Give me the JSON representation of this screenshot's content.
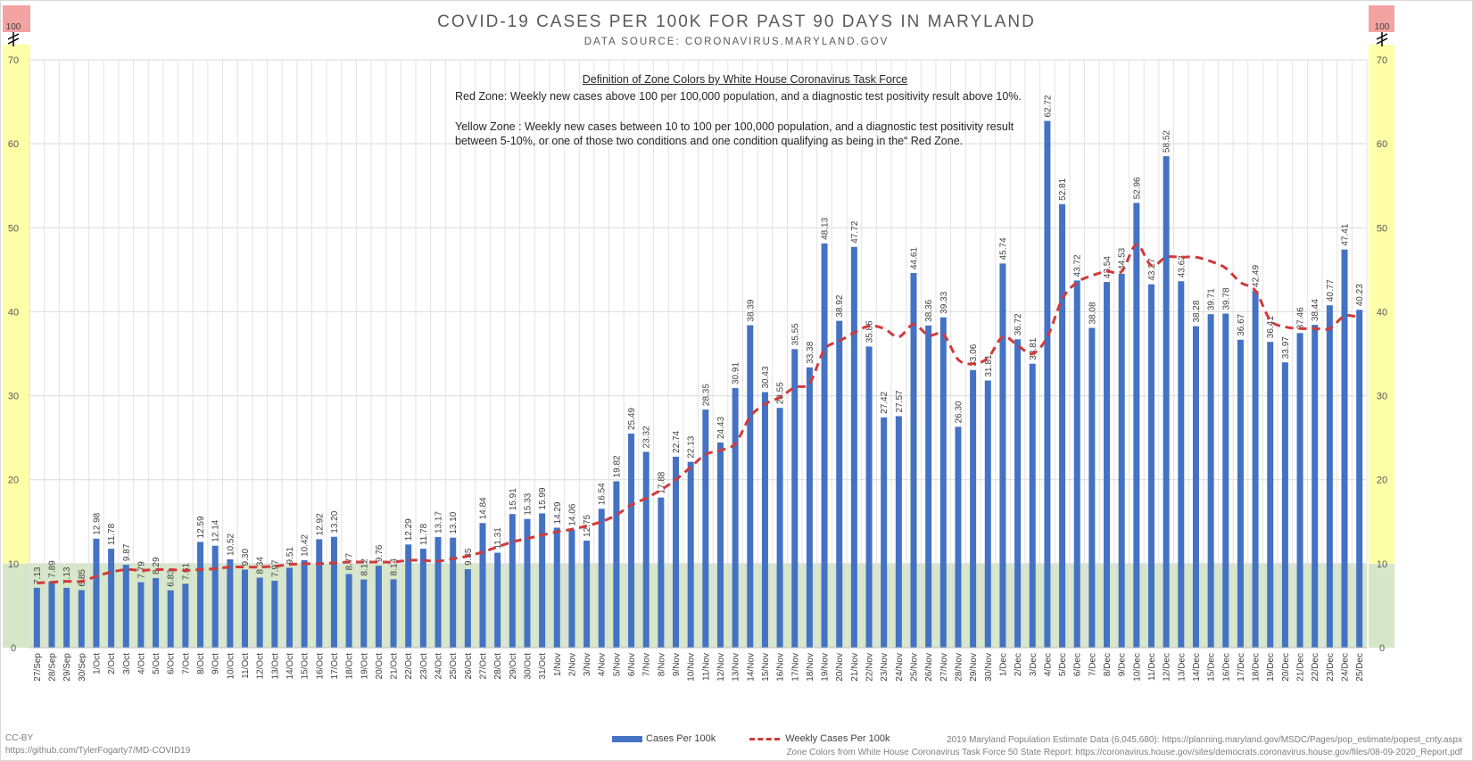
{
  "header": {
    "title": "COVID-19 CASES PER 100K FOR PAST 90 DAYS IN MARYLAND",
    "subtitle": "DATA SOURCE: CORONAVIRUS.MARYLAND.GOV"
  },
  "definitions": {
    "heading": "Definition of Zone Colors by White House Coronavirus Task Force",
    "red": "Red Zone: Weekly new cases above 100 per 100,000 population, and a diagnostic test positivity result above 10%.",
    "yellow_1": "Yellow Zone : Weekly new cases between 10 to 100 per 100,000 population, and a diagnostic test positivity result",
    "yellow_2": "between 5-10%, or one of those two conditions and one condition qualifying as being in the“ Red Zone."
  },
  "legend": {
    "bars": "Cases Per 100k",
    "line": "Weekly Cases Per 100k"
  },
  "footer": {
    "license": "CC-BY",
    "repo": "https://github.com/TylerFogarty7/MD-COVID19",
    "population": "2019 Maryland Population Estimate Data (6,045,680): https://planning.maryland.gov/MSDC/Pages/pop_estimate/popest_cnty.aspx",
    "zones": "Zone Colors from White House Coronavirus Task Force 50 State Report: https://coronavirus.house.gov/sites/democrats.coronavirus.house.gov/files/08-09-2020_Report.pdf"
  },
  "colors": {
    "bar": "#4472c4",
    "line": "#d13a3a",
    "red_zone": "#f4a3a3",
    "yellow_zone": "#ffffa8",
    "green_zone": "#d6e6c9"
  },
  "chart_data": {
    "type": "bar",
    "title": "COVID-19 CASES PER 100K FOR PAST 90 DAYS IN MARYLAND",
    "subtitle": "DATA SOURCE: CORONAVIRUS.MARYLAND.GOV",
    "ylim": [
      0,
      70
    ],
    "yticks": [
      0,
      10,
      20,
      30,
      40,
      50,
      60,
      70
    ],
    "axis_break_label": "100",
    "grid": true,
    "legend_position": "bottom",
    "categories": [
      "27/Sep",
      "28/Sep",
      "29/Sep",
      "30/Sep",
      "1/Oct",
      "2/Oct",
      "3/Oct",
      "4/Oct",
      "5/Oct",
      "6/Oct",
      "7/Oct",
      "8/Oct",
      "9/Oct",
      "10/Oct",
      "11/Oct",
      "12/Oct",
      "13/Oct",
      "14/Oct",
      "15/Oct",
      "16/Oct",
      "17/Oct",
      "18/Oct",
      "19/Oct",
      "20/Oct",
      "21/Oct",
      "22/Oct",
      "23/Oct",
      "24/Oct",
      "25/Oct",
      "26/Oct",
      "27/Oct",
      "28/Oct",
      "29/Oct",
      "30/Oct",
      "31/Oct",
      "1/Nov",
      "2/Nov",
      "3/Nov",
      "4/Nov",
      "5/Nov",
      "6/Nov",
      "7/Nov",
      "8/Nov",
      "9/Nov",
      "10/Nov",
      "11/Nov",
      "12/Nov",
      "13/Nov",
      "14/Nov",
      "15/Nov",
      "16/Nov",
      "17/Nov",
      "18/Nov",
      "19/Nov",
      "20/Nov",
      "21/Nov",
      "22/Nov",
      "23/Nov",
      "24/Nov",
      "25/Nov",
      "26/Nov",
      "27/Nov",
      "28/Nov",
      "29/Nov",
      "30/Nov",
      "1/Dec",
      "2/Dec",
      "3/Dec",
      "4/Dec",
      "5/Dec",
      "6/Dec",
      "7/Dec",
      "8/Dec",
      "9/Dec",
      "10/Dec",
      "11/Dec",
      "12/Dec",
      "13/Dec",
      "14/Dec",
      "15/Dec",
      "16/Dec",
      "17/Dec",
      "18/Dec",
      "19/Dec",
      "20/Dec",
      "21/Dec",
      "22/Dec",
      "23/Dec",
      "24/Dec",
      "25/Dec"
    ],
    "series": [
      {
        "name": "Cases Per 100k",
        "type": "bar",
        "values": [
          7.13,
          7.89,
          7.13,
          6.85,
          12.98,
          11.78,
          9.87,
          7.79,
          8.29,
          6.83,
          7.61,
          12.59,
          12.14,
          10.52,
          9.3,
          8.34,
          7.97,
          9.51,
          10.42,
          12.92,
          13.2,
          8.77,
          8.12,
          9.76,
          8.14,
          12.29,
          11.78,
          13.17,
          13.1,
          9.35,
          14.84,
          11.31,
          15.91,
          15.33,
          15.99,
          14.29,
          14.06,
          12.75,
          16.54,
          19.82,
          25.49,
          23.32,
          17.88,
          22.74,
          22.13,
          28.35,
          24.43,
          30.91,
          38.39,
          30.43,
          28.55,
          35.55,
          33.38,
          48.13,
          38.92,
          47.72,
          35.86,
          27.42,
          27.57,
          44.61,
          38.36,
          39.33,
          26.3,
          33.06,
          31.81,
          45.74,
          36.72,
          33.81,
          62.72,
          52.81,
          43.72,
          38.08,
          43.54,
          44.53,
          52.96,
          43.27,
          58.52,
          43.63,
          38.28,
          39.71,
          39.78,
          36.67,
          42.49,
          36.41,
          33.97,
          37.46,
          38.44,
          40.77,
          47.41,
          40.23
        ],
        "labels": [
          "7.13",
          "7.89",
          "7.13",
          "6.85",
          "12.98",
          "11.78",
          "9.87",
          "7.79",
          "8.29",
          "6.83",
          "7.61",
          "12.59",
          "12.14",
          "10.52",
          "9.30",
          "8.34",
          "7.97",
          "9.51",
          "10.42",
          "12.92",
          "13.20",
          "8.77",
          "8.12",
          "9.76",
          "8.14",
          "12.29",
          "11.78",
          "13.17",
          "13.10",
          "9.35",
          "14.84",
          "11.31",
          "15.91",
          "15.33",
          "15.99",
          "14.29",
          "14.06",
          "12.75",
          "16.54",
          "19.82",
          "25.49",
          "23.32",
          "17.88",
          "22.74",
          "22.13",
          "28.35",
          "24.43",
          "30.91",
          "38.39",
          "30.43",
          "28.55",
          "35.55",
          "33.38",
          "48.13",
          "38.92",
          "47.72",
          "35.86",
          "27.42",
          "27.57",
          "44.61",
          "38.36",
          "39.33",
          "26.30",
          "33.06",
          "31.81",
          "45.74",
          "36.72",
          "33.81",
          "62.72",
          "52.81",
          "43.72",
          "38.08",
          "43.54",
          "44.53",
          "52.96",
          "43.27",
          "58.52",
          "43.63",
          "38.28",
          "39.71",
          "39.78",
          "36.67",
          "42.49",
          "36.41",
          "33.97",
          "37.46",
          "38.44",
          "40.77",
          "47.41",
          "40.23"
        ]
      },
      {
        "name": "Weekly Cases Per 100k",
        "type": "line",
        "style": "dashed",
        "values": [
          7.7,
          7.8,
          7.9,
          7.9,
          8.5,
          9.0,
          9.3,
          9.2,
          9.3,
          9.3,
          9.2,
          9.3,
          9.4,
          9.6,
          9.6,
          9.6,
          9.7,
          9.9,
          10.0,
          10.0,
          10.1,
          10.2,
          10.2,
          10.2,
          10.2,
          10.4,
          10.4,
          10.3,
          10.6,
          10.9,
          11.4,
          12.0,
          12.6,
          13.0,
          13.4,
          13.8,
          14.1,
          14.5,
          15.0,
          15.8,
          17.0,
          17.8,
          18.8,
          20.0,
          21.5,
          23.0,
          23.5,
          24.3,
          27.5,
          29.0,
          29.8,
          31.0,
          31.5,
          35.5,
          36.5,
          37.5,
          38.3,
          38.0,
          37.0,
          38.5,
          37.2,
          37.3,
          34.3,
          33.8,
          34.5,
          37.0,
          36.0,
          35.0,
          37.0,
          41.5,
          43.5,
          44.3,
          44.8,
          44.8,
          48.0,
          45.5,
          46.5,
          46.5,
          46.5,
          46.0,
          45.2,
          43.5,
          42.5,
          39.0,
          38.2,
          38.0,
          38.0,
          38.0,
          39.5,
          39.3
        ]
      }
    ]
  }
}
